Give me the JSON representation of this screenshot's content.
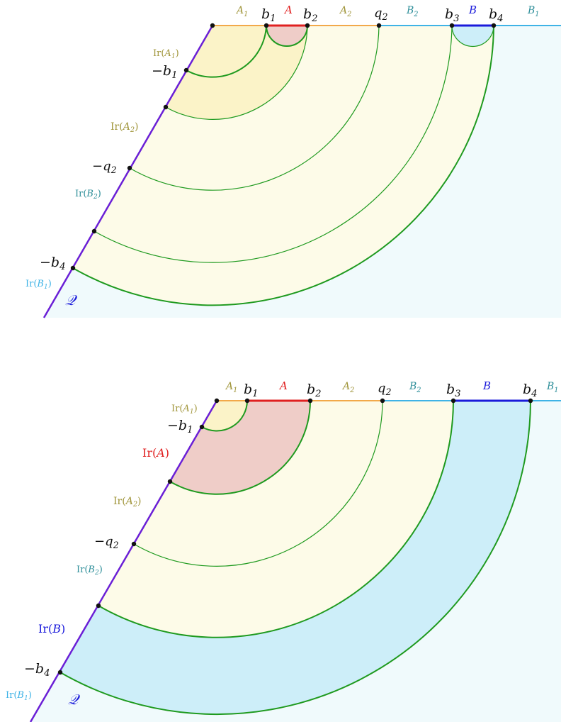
{
  "colors": {
    "boundary_purple": "#6a1fd6",
    "baseline_orange": "#f2a94a",
    "baseline_blue": "#3fb3e6",
    "A_red": "#e02020",
    "B_blue": "#1a1adb",
    "green": "#1f9a1f",
    "fill_yellow": "#fbf3c8",
    "fill_lightyellow": "#fdfbe8",
    "fill_pink": "#efcdc8",
    "fill_blue": "#cdeef9",
    "fill_lightblue": "#f0fafc",
    "label_olive": "#a0953a",
    "label_teal": "#2f8f9a",
    "label_cyan": "#3fb3e6",
    "label_red": "#e02020",
    "label_blue": "#1a1adb"
  },
  "top": {
    "segments": [
      {
        "base": "A",
        "sub": "1"
      },
      {
        "base": "b",
        "sub": "1"
      },
      {
        "base": "A",
        "sub": ""
      },
      {
        "base": "b",
        "sub": "2"
      },
      {
        "base": "A",
        "sub": "2"
      },
      {
        "base": "q",
        "sub": "2"
      },
      {
        "base": "B",
        "sub": "2"
      },
      {
        "base": "b",
        "sub": "3"
      },
      {
        "base": "B",
        "sub": ""
      },
      {
        "base": "b",
        "sub": "4"
      },
      {
        "base": "B",
        "sub": "1"
      }
    ],
    "left": {
      "ir_A1": {
        "pre": "Ir(",
        "base": "A",
        "sub": "1",
        "post": ")"
      },
      "neg_b1": {
        "pre": "−",
        "base": "b",
        "sub": "1"
      },
      "ir_A2": {
        "pre": "Ir(",
        "base": "A",
        "sub": "2",
        "post": ")"
      },
      "neg_q2": {
        "pre": "−",
        "base": "q",
        "sub": "2"
      },
      "ir_B2": {
        "pre": "Ir(",
        "base": "B",
        "sub": "2",
        "post": ")"
      },
      "neg_b4": {
        "pre": "−",
        "base": "b",
        "sub": "4"
      },
      "ir_B1": {
        "pre": "Ir(",
        "base": "B",
        "sub": "1",
        "post": ")"
      },
      "Q": "𝒬"
    }
  },
  "bottom": {
    "segments": [
      {
        "base": "A",
        "sub": "1"
      },
      {
        "base": "b",
        "sub": "1"
      },
      {
        "base": "A",
        "sub": ""
      },
      {
        "base": "b",
        "sub": "2"
      },
      {
        "base": "A",
        "sub": "2"
      },
      {
        "base": "q",
        "sub": "2"
      },
      {
        "base": "B",
        "sub": "2"
      },
      {
        "base": "b",
        "sub": "3"
      },
      {
        "base": "B",
        "sub": ""
      },
      {
        "base": "b",
        "sub": "4"
      },
      {
        "base": "B",
        "sub": "1"
      }
    ],
    "left": {
      "ir_A1": {
        "pre": "Ir(",
        "base": "A",
        "sub": "1",
        "post": ")"
      },
      "neg_b1": {
        "pre": "−",
        "base": "b",
        "sub": "1"
      },
      "ir_A": {
        "pre": "Ir(",
        "base": "A",
        "sub": "",
        "post": ")"
      },
      "ir_A2": {
        "pre": "Ir(",
        "base": "A",
        "sub": "2",
        "post": ")"
      },
      "neg_q2": {
        "pre": "−",
        "base": "q",
        "sub": "2"
      },
      "ir_B2": {
        "pre": "Ir(",
        "base": "B",
        "sub": "2",
        "post": ")"
      },
      "ir_B": {
        "pre": "Ir(",
        "base": "B",
        "sub": "",
        "post": ")"
      },
      "neg_b4": {
        "pre": "−",
        "base": "b",
        "sub": "4"
      },
      "ir_B1": {
        "pre": "Ir(",
        "base": "B",
        "sub": "1",
        "post": ")"
      },
      "Q": "𝒬"
    }
  }
}
